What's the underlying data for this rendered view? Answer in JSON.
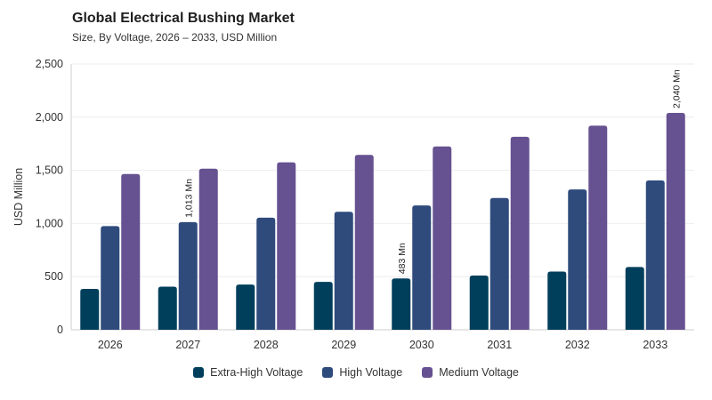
{
  "header": {
    "title": "Global Electrical Bushing Market",
    "subtitle": "Size, By Voltage, 2026 – 2033, USD Million"
  },
  "chart_data": {
    "type": "bar",
    "categories": [
      "2026",
      "2027",
      "2028",
      "2029",
      "2030",
      "2031",
      "2032",
      "2033"
    ],
    "series": [
      {
        "name": "Extra-High Voltage",
        "color": "#003f5c",
        "values": [
          385,
          405,
          425,
          450,
          483,
          510,
          548,
          590
        ]
      },
      {
        "name": "High Voltage",
        "color": "#2f4b7c",
        "values": [
          975,
          1013,
          1055,
          1110,
          1170,
          1240,
          1320,
          1405
        ]
      },
      {
        "name": "Medium Voltage",
        "color": "#665191",
        "values": [
          1465,
          1515,
          1575,
          1645,
          1725,
          1815,
          1920,
          2040
        ]
      }
    ],
    "xlabel": "",
    "ylabel": "USD Million",
    "ylim": [
      0,
      2500
    ],
    "yticks": [
      0,
      500,
      1000,
      1500,
      2000,
      2500
    ],
    "ytick_labels": [
      "0",
      "500",
      "1,000",
      "1,500",
      "2,000",
      "2,500"
    ],
    "grid": true,
    "legend_position": "bottom",
    "annotations": [
      {
        "series": 1,
        "category": 1,
        "text": "1,013 Mn"
      },
      {
        "series": 0,
        "category": 4,
        "text": "483 Mn"
      },
      {
        "series": 2,
        "category": 7,
        "text": "2,040 Mn"
      }
    ]
  }
}
